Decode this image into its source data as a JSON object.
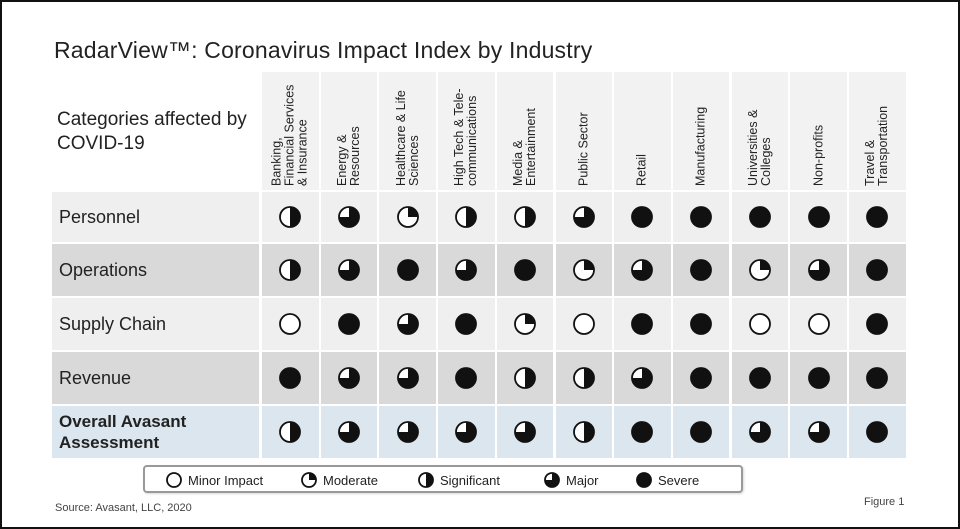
{
  "title": "RadarView™: Coronavirus Impact Index by Industry",
  "category_header": "Categories affected by COVID-19",
  "source": "Source: Avasant, LLC, 2020",
  "figure_label": "Figure 1",
  "colors": {
    "row_shade": "#d9d9d9",
    "row_light": "#efefef",
    "overall_row": "#dbe6ee",
    "header_bg": "#f2f2f2",
    "ball": "#111111"
  },
  "levels": {
    "minor": 0,
    "moderate": 0.25,
    "significant": 0.5,
    "major": 0.75,
    "severe": 1
  },
  "legend": [
    {
      "level": "minor",
      "label": "Minor Impact"
    },
    {
      "level": "moderate",
      "label": "Moderate"
    },
    {
      "level": "significant",
      "label": "Significant"
    },
    {
      "level": "major",
      "label": "Major"
    },
    {
      "level": "severe",
      "label": "Severe"
    }
  ],
  "chart_data": {
    "type": "table",
    "title": "RadarView™: Coronavirus Impact Index by Industry",
    "columns": [
      [
        "Banking,",
        "Financial Services",
        "& Insurance"
      ],
      [
        "Energy &",
        "Resources"
      ],
      [
        "Healthcare & Life",
        "Sciences"
      ],
      [
        "High Tech & Tele-",
        "communications"
      ],
      [
        "Media &",
        "Entertainment"
      ],
      [
        "Public Sector"
      ],
      [
        "Retail"
      ],
      [
        "Manufacturing"
      ],
      [
        "Universities &",
        "Colleges"
      ],
      [
        "Non-profits"
      ],
      [
        "Travel &",
        "Transportation"
      ]
    ],
    "rows": [
      {
        "label": "Personnel",
        "bold": false,
        "values": [
          "significant",
          "major",
          "moderate",
          "significant",
          "significant",
          "major",
          "severe",
          "severe",
          "severe",
          "severe",
          "severe"
        ]
      },
      {
        "label": "Operations",
        "bold": false,
        "values": [
          "significant",
          "major",
          "severe",
          "major",
          "severe",
          "moderate",
          "major",
          "severe",
          "moderate",
          "major",
          "severe"
        ]
      },
      {
        "label": "Supply Chain",
        "bold": false,
        "values": [
          "minor",
          "severe",
          "major",
          "severe",
          "moderate",
          "minor",
          "severe",
          "severe",
          "minor",
          "minor",
          "severe"
        ]
      },
      {
        "label": "Revenue",
        "bold": false,
        "values": [
          "severe",
          "major",
          "major",
          "severe",
          "significant",
          "significant",
          "major",
          "severe",
          "severe",
          "severe",
          "severe"
        ]
      },
      {
        "label": "Overall Avasant Assessment",
        "bold": true,
        "values": [
          "significant",
          "major",
          "major",
          "major",
          "major",
          "significant",
          "severe",
          "severe",
          "major",
          "major",
          "severe"
        ]
      }
    ]
  }
}
